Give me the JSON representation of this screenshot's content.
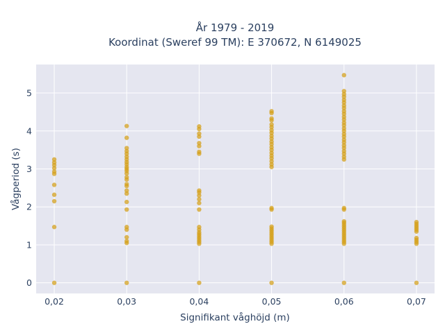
{
  "chart_data": {
    "type": "scatter",
    "title_line1": "År 1979 - 2019",
    "title_line2": "Koordinat (Sweref 99 TM): E 370672, N 6149025",
    "xlabel": "Signifikant våghöjd (m)",
    "ylabel": "Vågperiod (s)",
    "x_ticks": [
      {
        "value": 0.02,
        "label": "0,02"
      },
      {
        "value": 0.03,
        "label": "0,03"
      },
      {
        "value": 0.04,
        "label": "0,04"
      },
      {
        "value": 0.05,
        "label": "0,05"
      },
      {
        "value": 0.06,
        "label": "0,06"
      },
      {
        "value": 0.07,
        "label": "0,07"
      }
    ],
    "y_ticks": [
      {
        "value": 0,
        "label": "0"
      },
      {
        "value": 1,
        "label": "1"
      },
      {
        "value": 2,
        "label": "2"
      },
      {
        "value": 3,
        "label": "3"
      },
      {
        "value": 4,
        "label": "4"
      },
      {
        "value": 5,
        "label": "5"
      }
    ],
    "xlim": [
      0.0175,
      0.0725
    ],
    "ylim": [
      -0.28,
      5.75
    ],
    "grid": true,
    "colors": {
      "marker": "#d4a017",
      "plot_bg": "#e5e6f0",
      "grid": "#ffffff",
      "text": "#2a3f5f"
    },
    "series": [
      {
        "points": [
          {
            "x": 0.02,
            "y": 0
          },
          {
            "x": 0.02,
            "y": 1.47
          },
          {
            "x": 0.02,
            "y": 2.15
          },
          {
            "x": 0.02,
            "y": 2.32
          },
          {
            "x": 0.02,
            "y": 2.58
          },
          {
            "x": 0.02,
            "y": 2.87
          },
          {
            "x": 0.02,
            "y": 2.93
          },
          {
            "x": 0.02,
            "y": 3.02
          },
          {
            "x": 0.02,
            "y": 3.1
          },
          {
            "x": 0.02,
            "y": 3.17
          },
          {
            "x": 0.02,
            "y": 3.25
          },
          {
            "x": 0.03,
            "y": 0
          },
          {
            "x": 0.03,
            "y": 1.05
          },
          {
            "x": 0.03,
            "y": 1.1
          },
          {
            "x": 0.03,
            "y": 1.2
          },
          {
            "x": 0.03,
            "y": 1.4
          },
          {
            "x": 0.03,
            "y": 1.47
          },
          {
            "x": 0.03,
            "y": 1.93
          },
          {
            "x": 0.03,
            "y": 2.13
          },
          {
            "x": 0.03,
            "y": 2.35
          },
          {
            "x": 0.03,
            "y": 2.43
          },
          {
            "x": 0.03,
            "y": 2.55
          },
          {
            "x": 0.03,
            "y": 2.6
          },
          {
            "x": 0.03,
            "y": 2.72
          },
          {
            "x": 0.03,
            "y": 2.78
          },
          {
            "x": 0.03,
            "y": 2.88
          },
          {
            "x": 0.03,
            "y": 2.95
          },
          {
            "x": 0.03,
            "y": 3.0
          },
          {
            "x": 0.03,
            "y": 3.05
          },
          {
            "x": 0.03,
            "y": 3.12
          },
          {
            "x": 0.03,
            "y": 3.18
          },
          {
            "x": 0.03,
            "y": 3.25
          },
          {
            "x": 0.03,
            "y": 3.32
          },
          {
            "x": 0.03,
            "y": 3.4
          },
          {
            "x": 0.03,
            "y": 3.47
          },
          {
            "x": 0.03,
            "y": 3.55
          },
          {
            "x": 0.03,
            "y": 3.82
          },
          {
            "x": 0.03,
            "y": 4.13
          },
          {
            "x": 0.04,
            "y": 0
          },
          {
            "x": 0.04,
            "y": 1.03
          },
          {
            "x": 0.04,
            "y": 1.08
          },
          {
            "x": 0.04,
            "y": 1.13
          },
          {
            "x": 0.04,
            "y": 1.18
          },
          {
            "x": 0.04,
            "y": 1.23
          },
          {
            "x": 0.04,
            "y": 1.28
          },
          {
            "x": 0.04,
            "y": 1.33
          },
          {
            "x": 0.04,
            "y": 1.4
          },
          {
            "x": 0.04,
            "y": 1.47
          },
          {
            "x": 0.04,
            "y": 1.93
          },
          {
            "x": 0.04,
            "y": 2.1
          },
          {
            "x": 0.04,
            "y": 2.2
          },
          {
            "x": 0.04,
            "y": 2.3
          },
          {
            "x": 0.04,
            "y": 2.38
          },
          {
            "x": 0.04,
            "y": 2.43
          },
          {
            "x": 0.04,
            "y": 3.4
          },
          {
            "x": 0.04,
            "y": 3.45
          },
          {
            "x": 0.04,
            "y": 3.6
          },
          {
            "x": 0.04,
            "y": 3.68
          },
          {
            "x": 0.04,
            "y": 3.85
          },
          {
            "x": 0.04,
            "y": 3.93
          },
          {
            "x": 0.04,
            "y": 4.05
          },
          {
            "x": 0.04,
            "y": 4.12
          },
          {
            "x": 0.05,
            "y": 0
          },
          {
            "x": 0.05,
            "y": 1.03
          },
          {
            "x": 0.05,
            "y": 1.08
          },
          {
            "x": 0.05,
            "y": 1.13
          },
          {
            "x": 0.05,
            "y": 1.18
          },
          {
            "x": 0.05,
            "y": 1.23
          },
          {
            "x": 0.05,
            "y": 1.28
          },
          {
            "x": 0.05,
            "y": 1.33
          },
          {
            "x": 0.05,
            "y": 1.38
          },
          {
            "x": 0.05,
            "y": 1.43
          },
          {
            "x": 0.05,
            "y": 1.48
          },
          {
            "x": 0.05,
            "y": 1.93
          },
          {
            "x": 0.05,
            "y": 1.97
          },
          {
            "x": 0.05,
            "y": 3.05
          },
          {
            "x": 0.05,
            "y": 3.12
          },
          {
            "x": 0.05,
            "y": 3.2
          },
          {
            "x": 0.05,
            "y": 3.28
          },
          {
            "x": 0.05,
            "y": 3.35
          },
          {
            "x": 0.05,
            "y": 3.42
          },
          {
            "x": 0.05,
            "y": 3.5
          },
          {
            "x": 0.05,
            "y": 3.57
          },
          {
            "x": 0.05,
            "y": 3.65
          },
          {
            "x": 0.05,
            "y": 3.72
          },
          {
            "x": 0.05,
            "y": 3.8
          },
          {
            "x": 0.05,
            "y": 3.87
          },
          {
            "x": 0.05,
            "y": 3.95
          },
          {
            "x": 0.05,
            "y": 4.02
          },
          {
            "x": 0.05,
            "y": 4.1
          },
          {
            "x": 0.05,
            "y": 4.17
          },
          {
            "x": 0.05,
            "y": 4.28
          },
          {
            "x": 0.05,
            "y": 4.33
          },
          {
            "x": 0.05,
            "y": 4.47
          },
          {
            "x": 0.05,
            "y": 4.52
          },
          {
            "x": 0.06,
            "y": 0
          },
          {
            "x": 0.06,
            "y": 1.03
          },
          {
            "x": 0.06,
            "y": 1.08
          },
          {
            "x": 0.06,
            "y": 1.13
          },
          {
            "x": 0.06,
            "y": 1.18
          },
          {
            "x": 0.06,
            "y": 1.23
          },
          {
            "x": 0.06,
            "y": 1.28
          },
          {
            "x": 0.06,
            "y": 1.33
          },
          {
            "x": 0.06,
            "y": 1.38
          },
          {
            "x": 0.06,
            "y": 1.43
          },
          {
            "x": 0.06,
            "y": 1.48
          },
          {
            "x": 0.06,
            "y": 1.53
          },
          {
            "x": 0.06,
            "y": 1.58
          },
          {
            "x": 0.06,
            "y": 1.62
          },
          {
            "x": 0.06,
            "y": 1.93
          },
          {
            "x": 0.06,
            "y": 1.97
          },
          {
            "x": 0.06,
            "y": 3.25
          },
          {
            "x": 0.06,
            "y": 3.32
          },
          {
            "x": 0.06,
            "y": 3.4
          },
          {
            "x": 0.06,
            "y": 3.47
          },
          {
            "x": 0.06,
            "y": 3.55
          },
          {
            "x": 0.06,
            "y": 3.62
          },
          {
            "x": 0.06,
            "y": 3.7
          },
          {
            "x": 0.06,
            "y": 3.77
          },
          {
            "x": 0.06,
            "y": 3.85
          },
          {
            "x": 0.06,
            "y": 3.92
          },
          {
            "x": 0.06,
            "y": 4.0
          },
          {
            "x": 0.06,
            "y": 4.07
          },
          {
            "x": 0.06,
            "y": 4.15
          },
          {
            "x": 0.06,
            "y": 4.22
          },
          {
            "x": 0.06,
            "y": 4.3
          },
          {
            "x": 0.06,
            "y": 4.37
          },
          {
            "x": 0.06,
            "y": 4.45
          },
          {
            "x": 0.06,
            "y": 4.52
          },
          {
            "x": 0.06,
            "y": 4.6
          },
          {
            "x": 0.06,
            "y": 4.67
          },
          {
            "x": 0.06,
            "y": 4.75
          },
          {
            "x": 0.06,
            "y": 4.82
          },
          {
            "x": 0.06,
            "y": 4.9
          },
          {
            "x": 0.06,
            "y": 4.97
          },
          {
            "x": 0.06,
            "y": 5.05
          },
          {
            "x": 0.06,
            "y": 5.47
          },
          {
            "x": 0.07,
            "y": 0
          },
          {
            "x": 0.07,
            "y": 1.03
          },
          {
            "x": 0.07,
            "y": 1.08
          },
          {
            "x": 0.07,
            "y": 1.13
          },
          {
            "x": 0.07,
            "y": 1.18
          },
          {
            "x": 0.07,
            "y": 1.35
          },
          {
            "x": 0.07,
            "y": 1.4
          },
          {
            "x": 0.07,
            "y": 1.45
          },
          {
            "x": 0.07,
            "y": 1.5
          },
          {
            "x": 0.07,
            "y": 1.55
          },
          {
            "x": 0.07,
            "y": 1.6
          }
        ]
      }
    ]
  }
}
